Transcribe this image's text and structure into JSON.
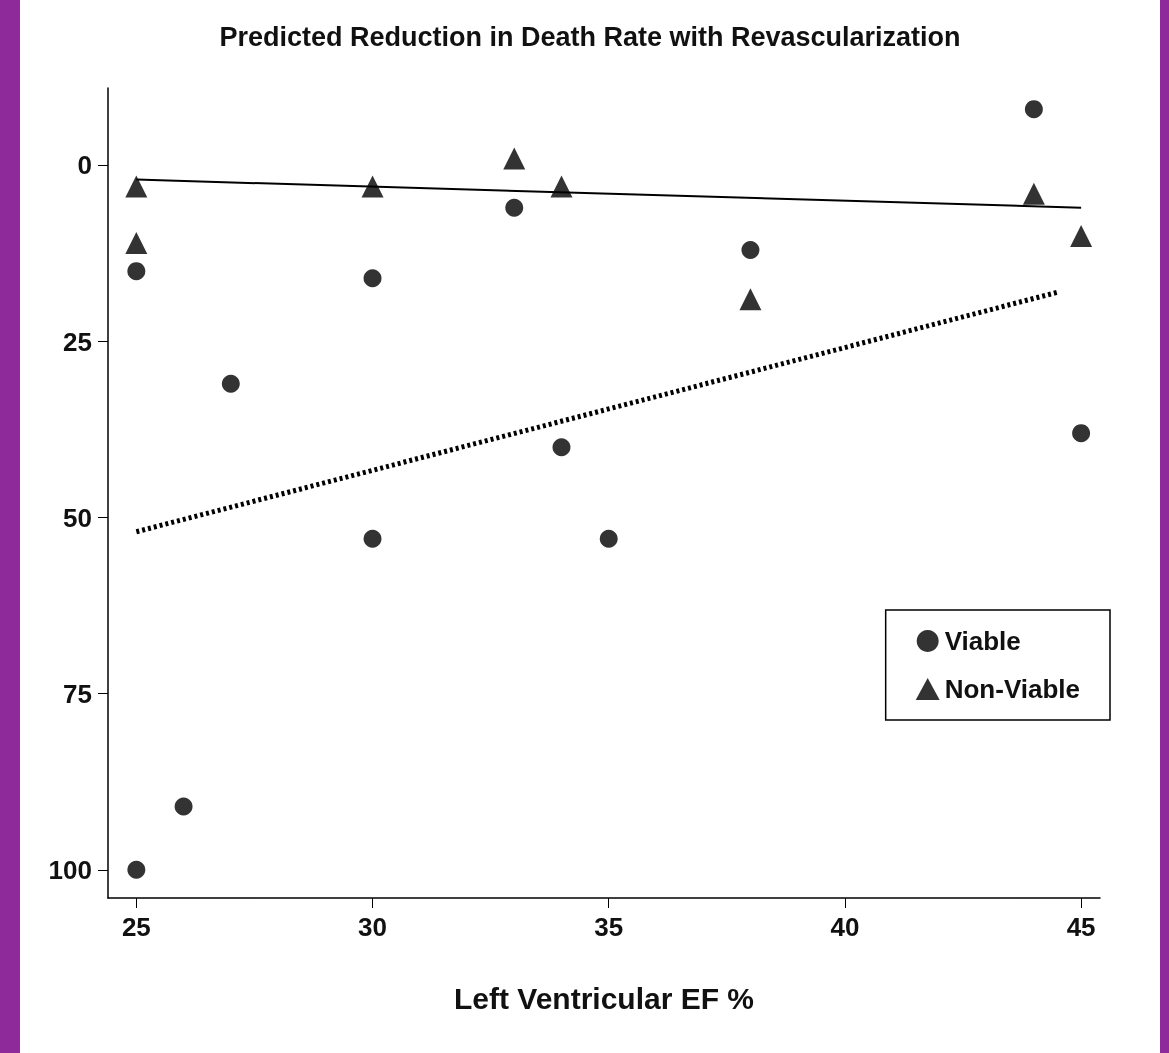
{
  "chart_data": {
    "type": "scatter",
    "title": "Predicted Reduction in Death Rate with Revascularization",
    "xlabel": "Left Ventricular EF %",
    "xlim": [
      24.4,
      45.4
    ],
    "xticks": [
      25,
      30,
      35,
      40,
      45
    ],
    "ylim": [
      104,
      -11
    ],
    "yticks": [
      0,
      25,
      50,
      75,
      100
    ],
    "grid": false,
    "legend": "right",
    "series": [
      {
        "name": "Viable",
        "marker": "circle",
        "color": "#000000",
        "x": [
          25,
          25,
          26,
          27,
          30,
          30,
          33,
          34,
          35,
          38,
          44,
          45
        ],
        "values": [
          15,
          100,
          91,
          31,
          16,
          53,
          6,
          40,
          53,
          12,
          -8,
          38
        ]
      },
      {
        "name": "Non-Viable",
        "marker": "triangle",
        "color": "#000000",
        "x": [
          25,
          25,
          30,
          33,
          34,
          38,
          44,
          45
        ],
        "values": [
          3,
          11,
          3,
          -1,
          3,
          19,
          4,
          10
        ]
      },
      {
        "type": "line",
        "line_style": "dotted",
        "marker": "none",
        "color": "#000000",
        "x": [
          25,
          44.5
        ],
        "values": [
          52,
          18
        ]
      },
      {
        "type": "line",
        "line_style": "solid",
        "marker": "none",
        "color": "#000000",
        "x": [
          25,
          45
        ],
        "values": [
          2,
          6
        ]
      }
    ]
  }
}
